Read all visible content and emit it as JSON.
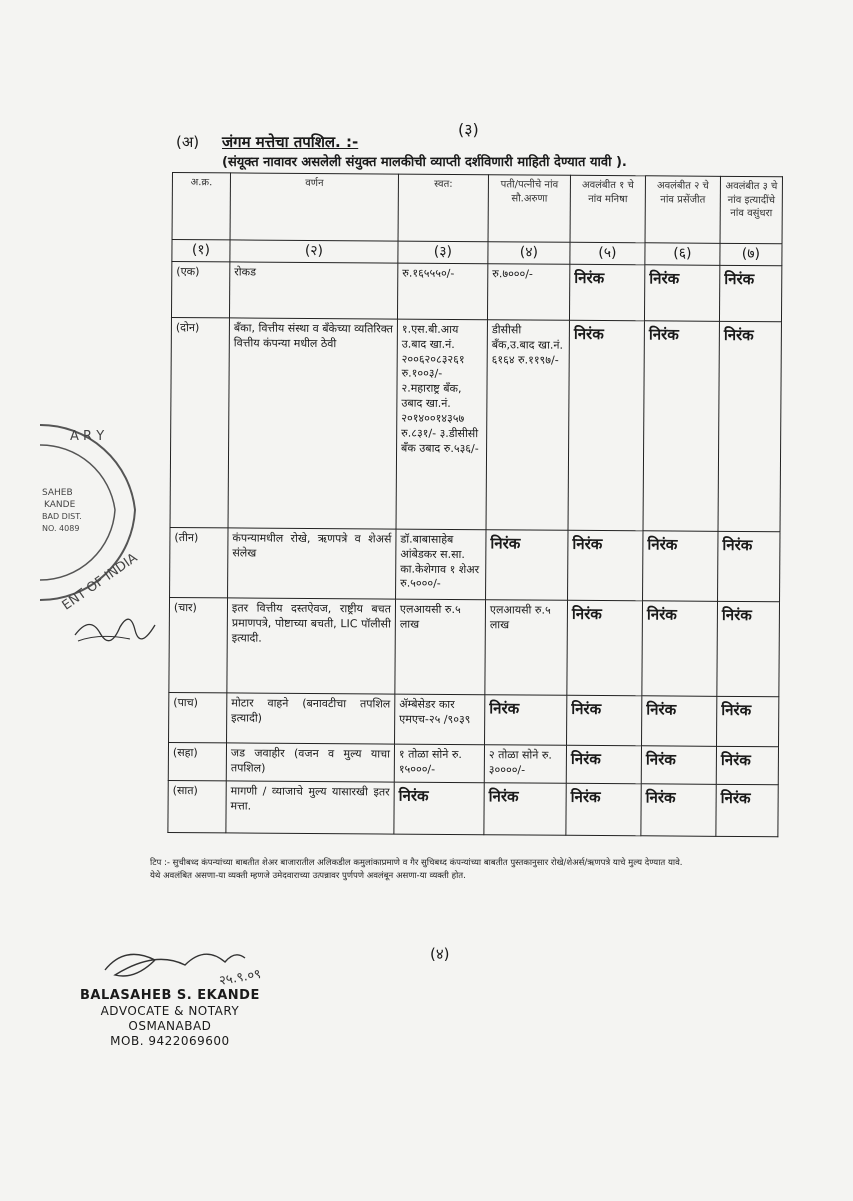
{
  "page_number_top": "(३)",
  "page_number_bottom": "(४)",
  "section": {
    "label": "(अ)",
    "title": "जंगम मत्तेचा तपशिल. :-",
    "subtitle": "(संयूक्त नावावर असलेली संयुक्त मालकीची व्याप्ती दर्शविणारी माहिती देण्यात यावी )."
  },
  "table": {
    "headers": [
      "अ.क्र.",
      "वर्णन",
      "स्वत:",
      "पती/पत्नीचे नांव सौ.अरुणा",
      "अवलंबीत १ चे नांव मनिषा",
      "अवलंबीत २ चे नांव प्रसेंजीत",
      "अवलंबीत ३ चे नांव इत्यादींचे नांव वसुंधरा"
    ],
    "column_numbers": [
      "(१)",
      "(२)",
      "(३)",
      "(४)",
      "(५)",
      "(६)",
      "(७)"
    ],
    "rows": [
      {
        "no": "(एक)",
        "desc": "रोकड",
        "self": "रु.१६५५५०/-",
        "spouse": "रु.७०००/-",
        "dep1": "निरंक",
        "dep2": "निरंक",
        "dep3": "निरंक"
      },
      {
        "no": "(दोन)",
        "desc": "बँका, वित्तीय संस्था व बँकेच्या व्यतिरिक्त वित्तीय कंपन्या मधील ठेवी",
        "self": "१.एस.बी.आय उ.बाद खा.नं. २००६२०८३२६१ रु.१००३/- २.महाराष्ट्र बँक, उबाद खा.नं. २०१४००१४३५७ रु.८३१/- ३.डीसीसी बँक उबाद रु.५३६/-",
        "spouse": "डीसीसी बँक,उ.बाद खा.नं. ६१६४ रु.११९७/-",
        "dep1": "निरंक",
        "dep2": "निरंक",
        "dep3": "निरंक"
      },
      {
        "no": "(तीन)",
        "desc": "कंपन्यामधील रोखे, ऋणपत्रे व शेअर्स संलेख",
        "self": "डॉ.बाबासाहेब आंबेडकर स.सा. का.केशेगाव १ शेअर रु.५०००/-",
        "spouse": "निरंक",
        "dep1": "निरंक",
        "dep2": "निरंक",
        "dep3": "निरंक"
      },
      {
        "no": "(चार)",
        "desc": "इतर वित्तीय दस्तऐवज, राष्ट्रीय बचत प्रमाणपत्रे, पोष्टाच्या बचती, LIC पॉलीसी इत्यादी.",
        "self": "एलआयसी रु.५ लाख",
        "spouse": "एलआयसी रु.५ लाख",
        "dep1": "निरंक",
        "dep2": "निरंक",
        "dep3": "निरंक"
      },
      {
        "no": "(पाच)",
        "desc": "मोटार वाहने (बनावटीचा तपशिल इत्यादी)",
        "self": "ॲम्बेसेडर कार एमएच-२५ /९०३९",
        "spouse": "निरंक",
        "dep1": "निरंक",
        "dep2": "निरंक",
        "dep3": "निरंक"
      },
      {
        "no": "(सहा)",
        "desc": "जड जवाहीर (वजन व मुल्य याचा तपशिल)",
        "self": "१ तोळा सोने रु. १५०००/-",
        "spouse": "२ तोळा सोने रु. ३००००/-",
        "dep1": "निरंक",
        "dep2": "निरंक",
        "dep3": "निरंक"
      },
      {
        "no": "(सात)",
        "desc": "मागणी / व्याजाचे मुल्य यासारखी इतर मत्ता.",
        "self": "निरंक",
        "spouse": "निरंक",
        "dep1": "निरंक",
        "dep2": "निरंक",
        "dep3": "निरंक"
      }
    ]
  },
  "note": {
    "line1": "टिप :- सुचीबध्द कंपन्यांच्या बाबतीत शेअर बाजारातील अलिकडील कमुलांकाप्रमाणे व गैर सुचिबध्द कंपन्यांच्या बाबतीत पुस्तकानुसार रोखे/शेअर्स/ऋणपत्रे याचे मुल्य देण्यात यावे.",
    "line2": "येथे अवलंबित असणा-या व्यक्ती म्हणजे उमेदवाराच्या उत्पन्नावर पुर्णपणे अवलंबून असणा-या व्यक्ती होत."
  },
  "stamp": {
    "text": [
      "ARY",
      "SAHEB",
      "KANDE",
      "BAD DIST.",
      "NO. 4089",
      "ENT OF INDIA"
    ]
  },
  "signature_date": "२५.९.०९",
  "notary": {
    "name": "BALASAHEB S. EKANDE",
    "title": "ADVOCATE & NOTARY",
    "city": "OSMANABAD",
    "mobile": "MOB. 9422069600"
  }
}
